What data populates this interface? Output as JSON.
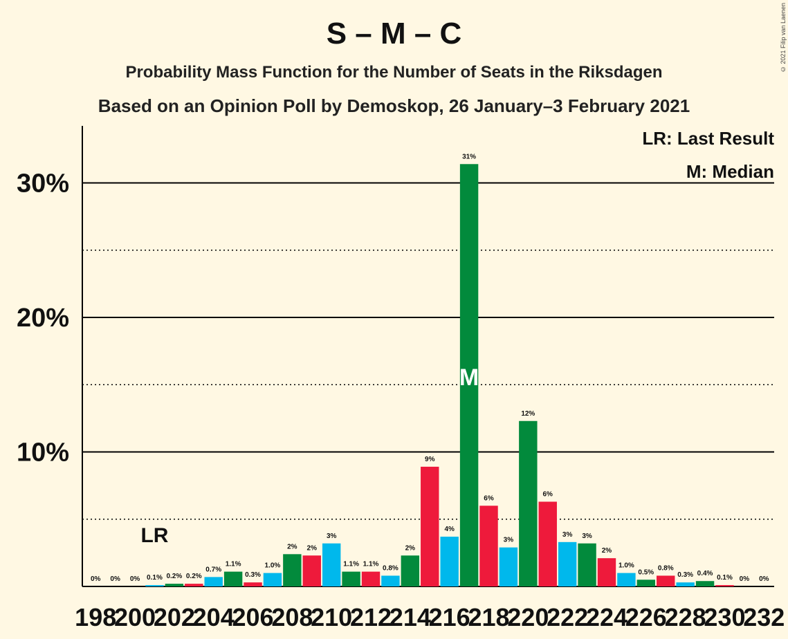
{
  "title": "S – M – C",
  "subtitle": "Probability Mass Function for the Number of Seats in the Riksdagen",
  "subtitle2": "Based on an Opinion Poll by Demoskop, 26 January–3 February 2021",
  "legend": {
    "last_result": "LR: Last Result",
    "median": "M: Median"
  },
  "copyright": "© 2021 Filip van Laenen",
  "colors": {
    "background": "#fff8e3",
    "blue": "#00b8ec",
    "red": "#ee1a3b",
    "green": "#028a3c"
  },
  "chart_data": {
    "type": "bar",
    "x": [
      198,
      199,
      200,
      201,
      202,
      203,
      204,
      205,
      206,
      207,
      208,
      209,
      210,
      211,
      212,
      213,
      214,
      215,
      216,
      217,
      218,
      219,
      220,
      221,
      222,
      223,
      224,
      225,
      226,
      227,
      228,
      229,
      230,
      231,
      232
    ],
    "values": [
      0,
      0,
      0,
      0.1,
      0.2,
      0.2,
      0.7,
      1.1,
      0.3,
      1.0,
      2.4,
      2.3,
      3.2,
      1.1,
      1.1,
      0.8,
      2.3,
      8.9,
      3.7,
      31.4,
      6.0,
      2.9,
      12.3,
      6.3,
      3.3,
      3.2,
      2.1,
      1.0,
      0.5,
      0.8,
      0.3,
      0.4,
      0.1,
      0,
      0
    ],
    "labels": [
      "0%",
      "0%",
      "0%",
      "0.1%",
      "0.2%",
      "0.2%",
      "0.7%",
      "1.1%",
      "0.3%",
      "1.0%",
      "2%",
      "2%",
      "3%",
      "1.1%",
      "1.1%",
      "0.8%",
      "2%",
      "9%",
      "4%",
      "31%",
      "6%",
      "3%",
      "12%",
      "6%",
      "3%",
      "3%",
      "2%",
      "1.0%",
      "0.5%",
      "0.8%",
      "0.3%",
      "0.4%",
      "0.1%",
      "0%",
      "0%"
    ],
    "bar_colors": [
      "blue",
      "green",
      "red"
    ],
    "x_tick_labels": [
      "198",
      "200",
      "202",
      "204",
      "206",
      "208",
      "210",
      "212",
      "214",
      "216",
      "218",
      "220",
      "222",
      "224",
      "226",
      "228",
      "230",
      "232"
    ],
    "y_ticks": [
      10,
      20,
      30
    ],
    "y_tick_labels": [
      "10%",
      "20%",
      "30%"
    ],
    "ylim": [
      0,
      34
    ],
    "last_result": {
      "x": 201,
      "label": "LR"
    },
    "median": {
      "x": 217,
      "label": "M"
    }
  }
}
